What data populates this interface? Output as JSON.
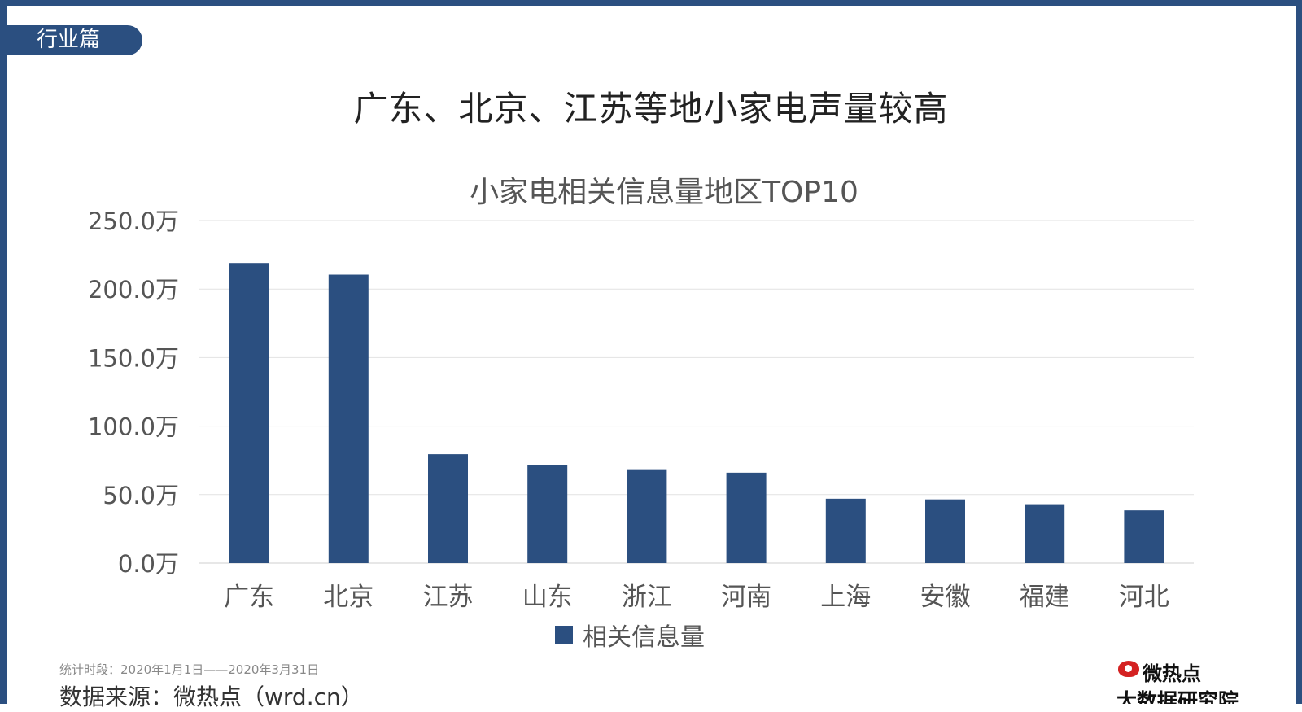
{
  "section_tag": "行业篇",
  "main_title": "广东、北京、江苏等地小家电声量较高",
  "chart_data": {
    "type": "bar",
    "title": "小家电相关信息量地区TOP10",
    "categories": [
      "广东",
      "北京",
      "江苏",
      "山东",
      "浙江",
      "河南",
      "上海",
      "安徽",
      "福建",
      "河北"
    ],
    "series": [
      {
        "name": "相关信息量",
        "values": [
          219.0,
          210.5,
          79.5,
          71.5,
          68.5,
          66.0,
          47.0,
          46.5,
          43.0,
          38.5
        ]
      }
    ],
    "ylim": [
      0,
      250
    ],
    "yticks": [
      0,
      50,
      100,
      150,
      200,
      250
    ],
    "ytick_labels": [
      "0.0万",
      "50.0万",
      "100.0万",
      "150.0万",
      "200.0万",
      "250.0万"
    ],
    "grid": true,
    "legend": "bottom",
    "color": "#2b4f80"
  },
  "footer": {
    "period": "统计时段：2020年1月1日——2020年3月31日",
    "source": "数据来源：微热点（wrd.cn）",
    "logo_line1": "微热点",
    "logo_line2": "大数据研究院"
  },
  "colors": {
    "frame": "#2b4f80",
    "bar": "#2b4f80"
  }
}
